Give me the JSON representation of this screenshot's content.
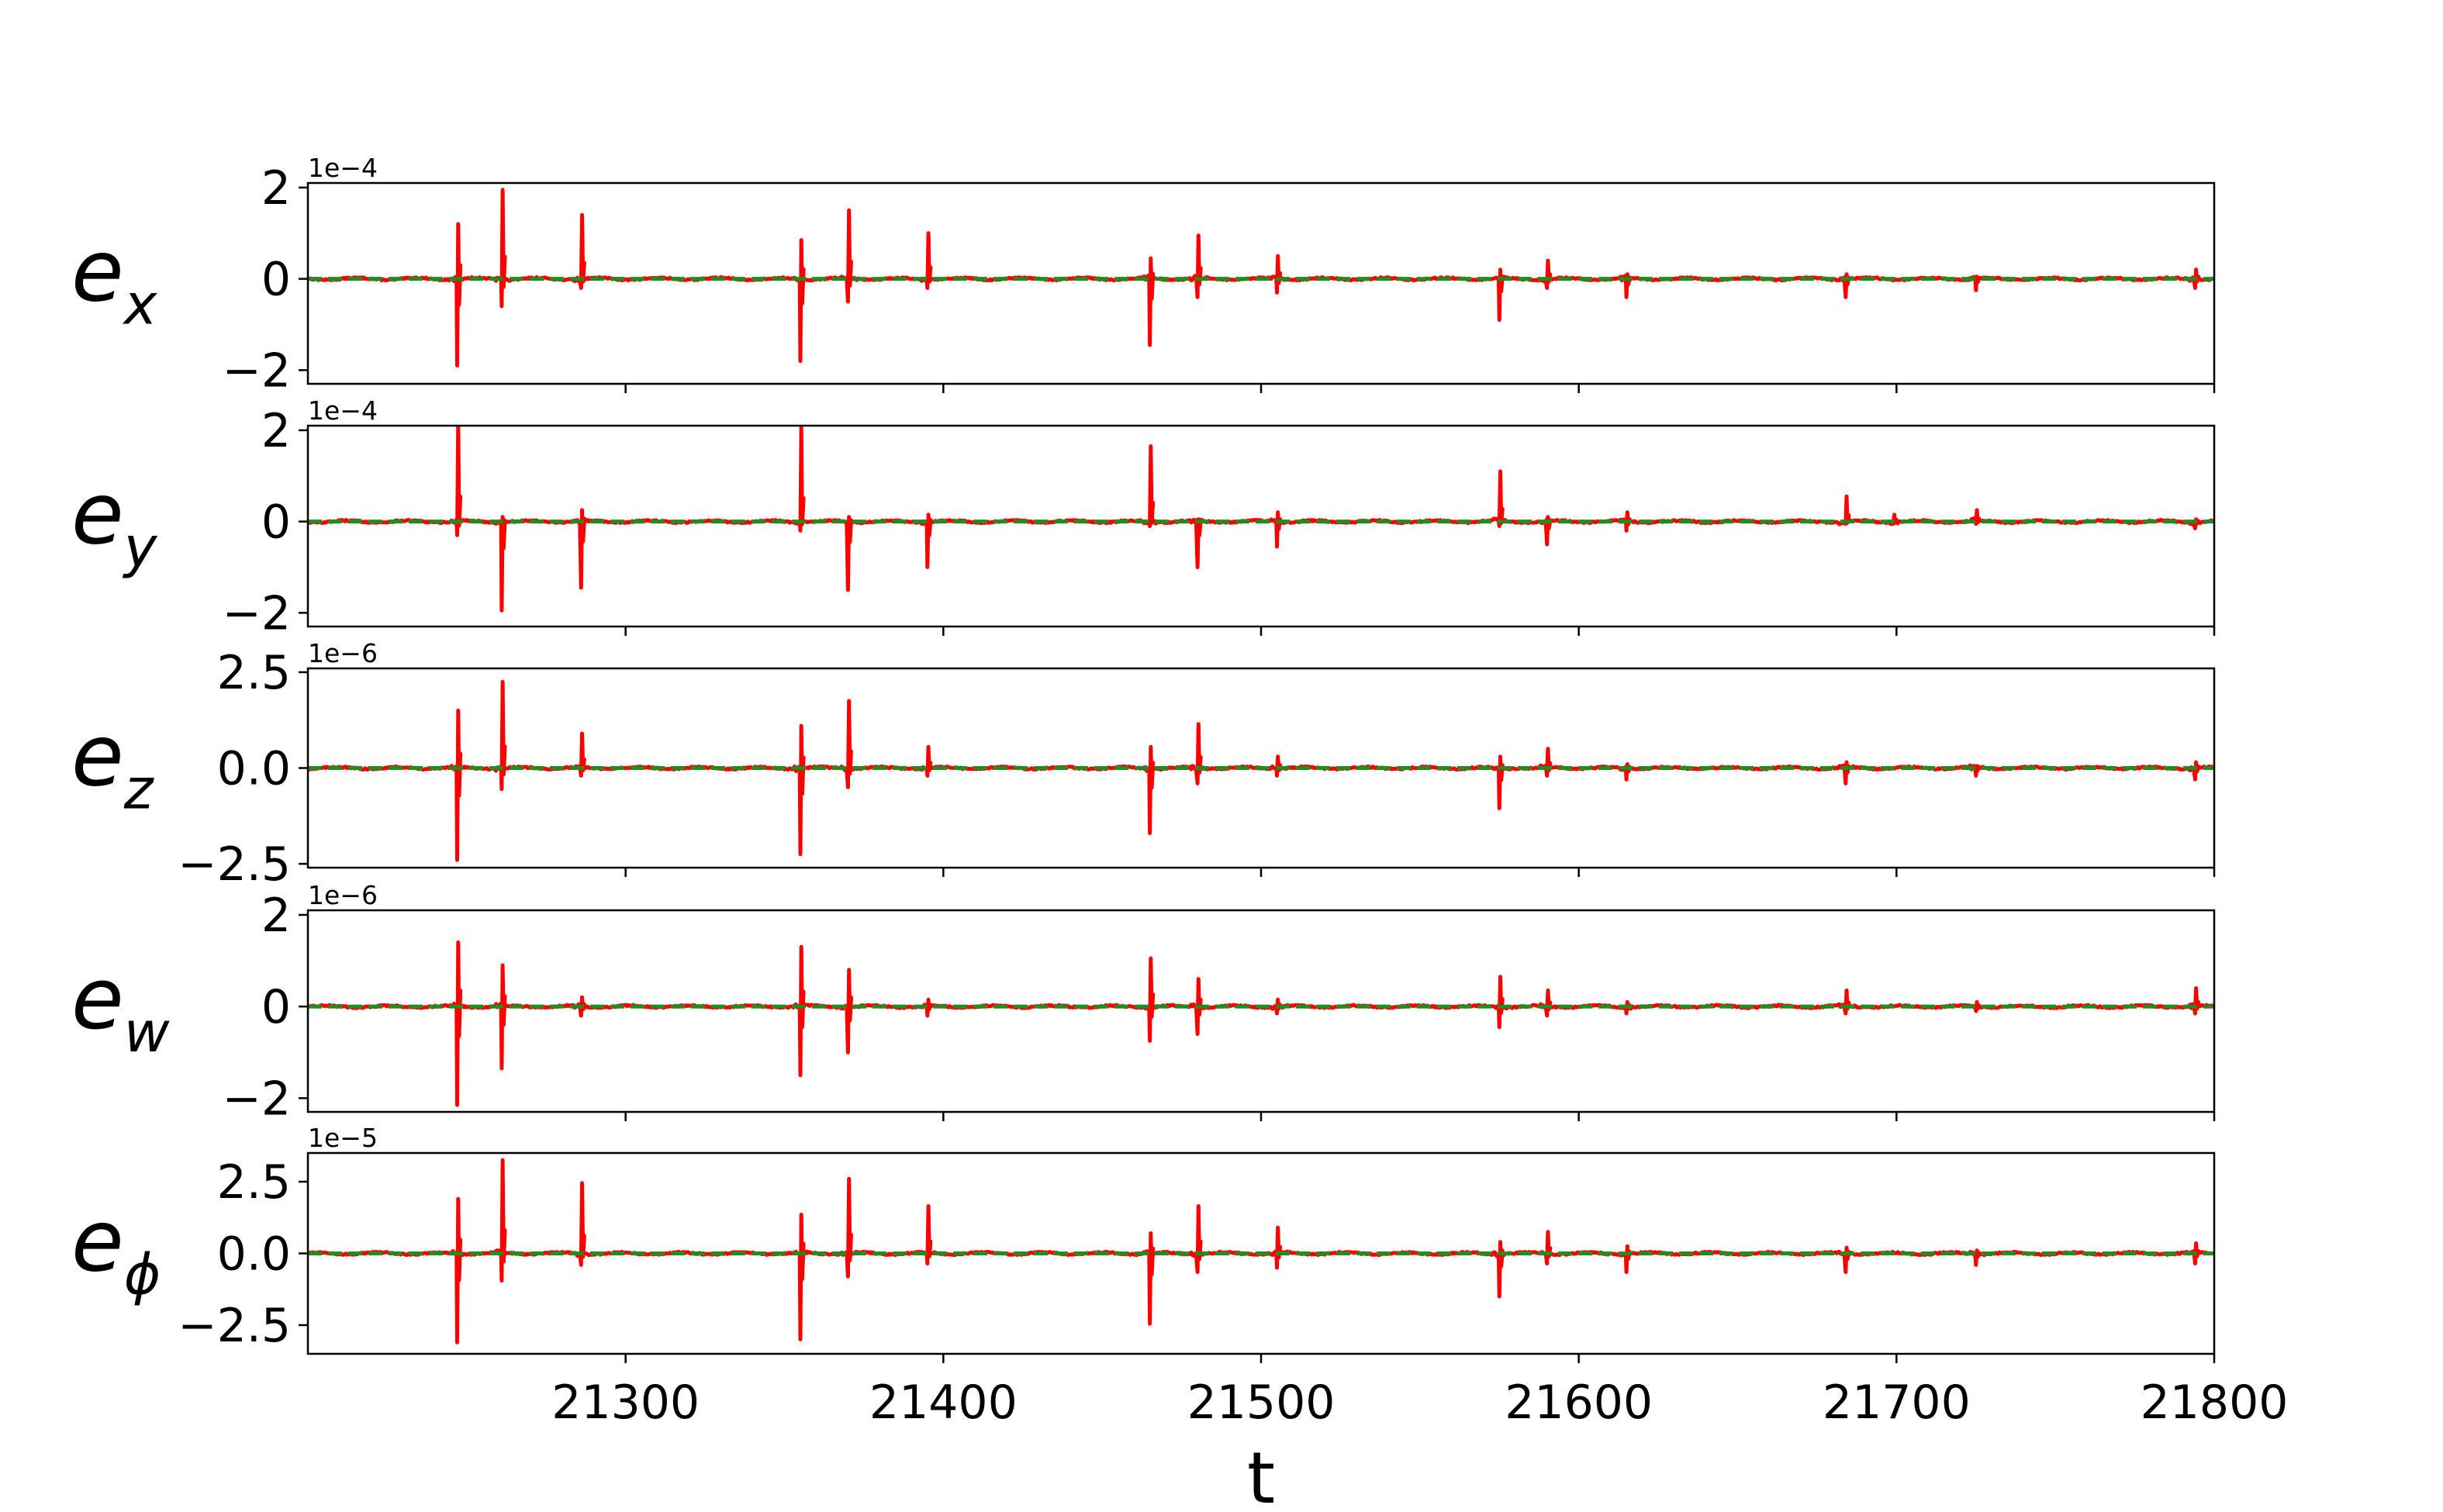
{
  "chart_data": [
    {
      "type": "line",
      "ylabel_main": "e",
      "ylabel_sub": "x",
      "offset_text": "1e−4",
      "ylim": [
        -2.3,
        2.1
      ],
      "yticks": [
        -2,
        0,
        2
      ],
      "ytick_labels": [
        "−2",
        "0",
        "2"
      ],
      "xlim": [
        21200,
        21800
      ],
      "xticks": [
        21300,
        21400,
        21500,
        21600,
        21700,
        21800
      ],
      "series": [
        {
          "color": "#ff0000",
          "spikes": [
            {
              "t": 21247,
              "up": 1.2,
              "down": -1.9
            },
            {
              "t": 21261,
              "up": 1.95,
              "down": -0.6
            },
            {
              "t": 21286,
              "up": 1.4,
              "down": -0.2
            },
            {
              "t": 21355,
              "up": 0.85,
              "down": -1.8
            },
            {
              "t": 21370,
              "up": 1.5,
              "down": -0.5
            },
            {
              "t": 21395,
              "up": 1.0,
              "down": -0.2
            },
            {
              "t": 21465,
              "up": 0.45,
              "down": -1.45
            },
            {
              "t": 21480,
              "up": 0.95,
              "down": -0.4
            },
            {
              "t": 21505,
              "up": 0.5,
              "down": -0.3
            },
            {
              "t": 21575,
              "up": 0.2,
              "down": -0.9
            },
            {
              "t": 21590,
              "up": 0.4,
              "down": -0.2
            },
            {
              "t": 21615,
              "up": 0.1,
              "down": -0.4
            },
            {
              "t": 21684,
              "up": 0.1,
              "down": -0.4
            },
            {
              "t": 21725,
              "up": 0.05,
              "down": -0.25
            },
            {
              "t": 21794,
              "up": 0.2,
              "down": -0.2
            }
          ]
        },
        {
          "color": "#228b22",
          "dashed": true,
          "value": 0
        }
      ]
    },
    {
      "type": "line",
      "ylabel_main": "e",
      "ylabel_sub": "y",
      "offset_text": "1e−4",
      "ylim": [
        -2.3,
        2.1
      ],
      "yticks": [
        -2,
        0,
        2
      ],
      "ytick_labels": [
        "−2",
        "0",
        "2"
      ],
      "xlim": [
        21200,
        21800
      ],
      "xticks": [
        21300,
        21400,
        21500,
        21600,
        21700,
        21800
      ],
      "series": [
        {
          "color": "#ff0000",
          "spikes": [
            {
              "t": 21247,
              "up": 2.2,
              "down": -0.3
            },
            {
              "t": 21261,
              "up": 0.1,
              "down": -1.95
            },
            {
              "t": 21286,
              "up": 0.25,
              "down": -1.45
            },
            {
              "t": 21355,
              "up": 2.05,
              "down": -0.2
            },
            {
              "t": 21370,
              "up": 0.1,
              "down": -1.5
            },
            {
              "t": 21395,
              "up": 0.15,
              "down": -1.0
            },
            {
              "t": 21465,
              "up": 1.65,
              "down": -0.1
            },
            {
              "t": 21480,
              "up": 0.05,
              "down": -1.0
            },
            {
              "t": 21505,
              "up": 0.2,
              "down": -0.55
            },
            {
              "t": 21575,
              "up": 1.1,
              "down": -0.1
            },
            {
              "t": 21590,
              "up": 0.1,
              "down": -0.5
            },
            {
              "t": 21615,
              "up": 0.2,
              "down": -0.2
            },
            {
              "t": 21684,
              "up": 0.55,
              "down": -0.05
            },
            {
              "t": 21699,
              "up": 0.15,
              "down": -0.05
            },
            {
              "t": 21725,
              "up": 0.25,
              "down": -0.05
            },
            {
              "t": 21794,
              "up": 0.05,
              "down": -0.15
            }
          ]
        },
        {
          "color": "#228b22",
          "dashed": true,
          "value": 0
        }
      ]
    },
    {
      "type": "line",
      "ylabel_main": "e",
      "ylabel_sub": "z",
      "offset_text": "1e−6",
      "ylim": [
        -2.6,
        2.6
      ],
      "yticks": [
        -2.5,
        0.0,
        2.5
      ],
      "ytick_labels": [
        "−2.5",
        "0.0",
        "2.5"
      ],
      "xlim": [
        21200,
        21800
      ],
      "xticks": [
        21300,
        21400,
        21500,
        21600,
        21700,
        21800
      ],
      "series": [
        {
          "color": "#ff0000",
          "spikes": [
            {
              "t": 21247,
              "up": 1.5,
              "down": -2.4
            },
            {
              "t": 21261,
              "up": 2.25,
              "down": -0.55
            },
            {
              "t": 21286,
              "up": 0.9,
              "down": -0.2
            },
            {
              "t": 21355,
              "up": 1.1,
              "down": -2.25
            },
            {
              "t": 21370,
              "up": 1.75,
              "down": -0.5
            },
            {
              "t": 21395,
              "up": 0.55,
              "down": -0.2
            },
            {
              "t": 21465,
              "up": 0.55,
              "down": -1.7
            },
            {
              "t": 21480,
              "up": 1.15,
              "down": -0.4
            },
            {
              "t": 21505,
              "up": 0.3,
              "down": -0.2
            },
            {
              "t": 21575,
              "up": 0.3,
              "down": -1.05
            },
            {
              "t": 21590,
              "up": 0.5,
              "down": -0.2
            },
            {
              "t": 21615,
              "up": 0.1,
              "down": -0.3
            },
            {
              "t": 21684,
              "up": 0.15,
              "down": -0.4
            },
            {
              "t": 21725,
              "up": 0.05,
              "down": -0.2
            },
            {
              "t": 21794,
              "up": 0.15,
              "down": -0.3
            }
          ]
        },
        {
          "color": "#228b22",
          "dashed": true,
          "value": 0
        }
      ]
    },
    {
      "type": "line",
      "ylabel_main": "e",
      "ylabel_sub": "w",
      "offset_text": "1e−6",
      "ylim": [
        -2.3,
        2.1
      ],
      "yticks": [
        -2,
        0,
        2
      ],
      "ytick_labels": [
        "−2",
        "0",
        "2"
      ],
      "xlim": [
        21200,
        21800
      ],
      "xticks": [
        21300,
        21400,
        21500,
        21600,
        21700,
        21800
      ],
      "series": [
        {
          "color": "#ff0000",
          "spikes": [
            {
              "t": 21247,
              "up": 1.4,
              "down": -2.15
            },
            {
              "t": 21261,
              "up": 0.9,
              "down": -1.35
            },
            {
              "t": 21286,
              "up": 0.2,
              "down": -0.2
            },
            {
              "t": 21355,
              "up": 1.3,
              "down": -1.5
            },
            {
              "t": 21370,
              "up": 0.8,
              "down": -1.0
            },
            {
              "t": 21395,
              "up": 0.15,
              "down": -0.2
            },
            {
              "t": 21465,
              "up": 1.05,
              "down": -0.75
            },
            {
              "t": 21480,
              "up": 0.6,
              "down": -0.6
            },
            {
              "t": 21505,
              "up": 0.15,
              "down": -0.15
            },
            {
              "t": 21575,
              "up": 0.65,
              "down": -0.45
            },
            {
              "t": 21590,
              "up": 0.35,
              "down": -0.2
            },
            {
              "t": 21615,
              "up": 0.1,
              "down": -0.15
            },
            {
              "t": 21684,
              "up": 0.35,
              "down": -0.15
            },
            {
              "t": 21725,
              "up": 0.1,
              "down": -0.1
            },
            {
              "t": 21794,
              "up": 0.4,
              "down": -0.15
            }
          ]
        },
        {
          "color": "#228b22",
          "dashed": true,
          "value": 0
        }
      ]
    },
    {
      "type": "line",
      "ylabel_main": "e",
      "ylabel_sub": "ϕ",
      "offset_text": "1e−5",
      "ylim": [
        -3.5,
        3.5
      ],
      "yticks": [
        -2.5,
        0.0,
        2.5
      ],
      "ytick_labels": [
        "−2.5",
        "0.0",
        "2.5"
      ],
      "xlim": [
        21200,
        21800
      ],
      "xticks": [
        21300,
        21400,
        21500,
        21600,
        21700,
        21800
      ],
      "xtick_labels": [
        "21300",
        "21400",
        "21500",
        "21600",
        "21700",
        "21800"
      ],
      "xlabel": "t",
      "series": [
        {
          "color": "#ff0000",
          "spikes": [
            {
              "t": 21247,
              "up": 1.9,
              "down": -3.1
            },
            {
              "t": 21261,
              "up": 3.25,
              "down": -0.95
            },
            {
              "t": 21286,
              "up": 2.45,
              "down": -0.4
            },
            {
              "t": 21355,
              "up": 1.35,
              "down": -3.0
            },
            {
              "t": 21370,
              "up": 2.6,
              "down": -0.8
            },
            {
              "t": 21395,
              "up": 1.65,
              "down": -0.35
            },
            {
              "t": 21465,
              "up": 0.7,
              "down": -2.45
            },
            {
              "t": 21480,
              "up": 1.65,
              "down": -0.65
            },
            {
              "t": 21505,
              "up": 0.9,
              "down": -0.5
            },
            {
              "t": 21575,
              "up": 0.4,
              "down": -1.5
            },
            {
              "t": 21590,
              "up": 0.75,
              "down": -0.35
            },
            {
              "t": 21615,
              "up": 0.25,
              "down": -0.65
            },
            {
              "t": 21684,
              "up": 0.2,
              "down": -0.65
            },
            {
              "t": 21725,
              "up": 0.1,
              "down": -0.4
            },
            {
              "t": 21794,
              "up": 0.35,
              "down": -0.35
            }
          ]
        },
        {
          "color": "#228b22",
          "dashed": true,
          "value": 0
        }
      ]
    }
  ]
}
